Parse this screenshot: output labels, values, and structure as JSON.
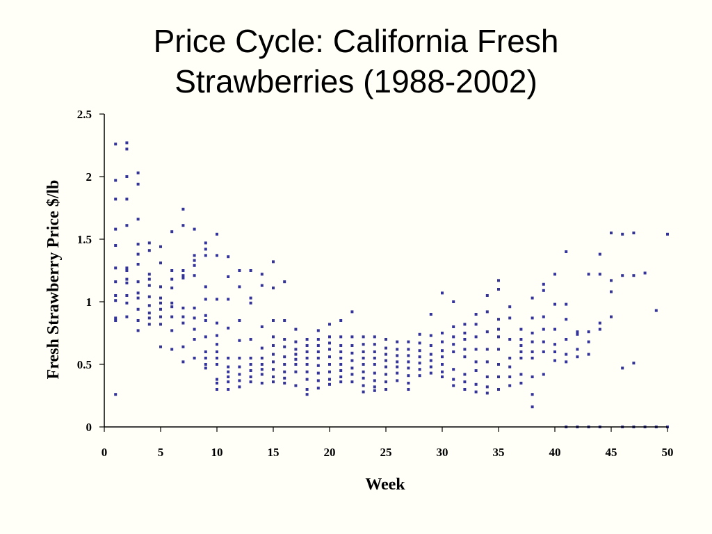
{
  "title_line1": "Price Cycle: California Fresh",
  "title_line2": "Strawberries (1988-2002)",
  "colors": {
    "background": "#fffff7",
    "points": "#33339a",
    "axis": "#000000"
  },
  "chart_data": {
    "type": "scatter",
    "xlabel": "Week",
    "ylabel": "Fresh Strawberry Price $/lb",
    "xlim": [
      0,
      50
    ],
    "ylim": [
      0,
      2.5
    ],
    "xticks": [
      "0",
      "5",
      "10",
      "15",
      "20",
      "25",
      "30",
      "35",
      "40",
      "45",
      "50"
    ],
    "yticks": [
      "0",
      "0.5",
      "1",
      "1.5",
      "2",
      "2.5"
    ],
    "grid": false,
    "legend": "none",
    "marker": "square",
    "points": [
      [
        1,
        2.26
      ],
      [
        1,
        1.97
      ],
      [
        1,
        1.82
      ],
      [
        1,
        1.58
      ],
      [
        1,
        1.45
      ],
      [
        1,
        1.27
      ],
      [
        1,
        1.16
      ],
      [
        1,
        1.05
      ],
      [
        1,
        1.01
      ],
      [
        1,
        0.87
      ],
      [
        1,
        0.85
      ],
      [
        1,
        0.26
      ],
      [
        2,
        2.27
      ],
      [
        2,
        2.22
      ],
      [
        2,
        2.0
      ],
      [
        2,
        1.82
      ],
      [
        2,
        1.61
      ],
      [
        2,
        1.27
      ],
      [
        2,
        1.25
      ],
      [
        2,
        1.18
      ],
      [
        2,
        1.15
      ],
      [
        2,
        1.05
      ],
      [
        2,
        0.99
      ],
      [
        2,
        0.88
      ],
      [
        3,
        2.03
      ],
      [
        3,
        1.94
      ],
      [
        3,
        1.66
      ],
      [
        3,
        1.46
      ],
      [
        3,
        1.38
      ],
      [
        3,
        1.3
      ],
      [
        3,
        1.16
      ],
      [
        3,
        1.07
      ],
      [
        3,
        1.03
      ],
      [
        3,
        0.94
      ],
      [
        3,
        0.85
      ],
      [
        3,
        0.77
      ],
      [
        4,
        1.47
      ],
      [
        4,
        1.41
      ],
      [
        4,
        1.22
      ],
      [
        4,
        1.18
      ],
      [
        4,
        1.13
      ],
      [
        4,
        1.04
      ],
      [
        4,
        0.97
      ],
      [
        4,
        0.91
      ],
      [
        4,
        0.87
      ],
      [
        4,
        0.82
      ],
      [
        5,
        1.44
      ],
      [
        5,
        1.31
      ],
      [
        5,
        1.12
      ],
      [
        5,
        1.03
      ],
      [
        5,
        0.99
      ],
      [
        5,
        0.94
      ],
      [
        5,
        0.88
      ],
      [
        5,
        0.82
      ],
      [
        5,
        0.64
      ],
      [
        6,
        1.56
      ],
      [
        6,
        1.25
      ],
      [
        6,
        1.18
      ],
      [
        6,
        1.11
      ],
      [
        6,
        0.99
      ],
      [
        6,
        0.96
      ],
      [
        6,
        0.88
      ],
      [
        6,
        0.77
      ],
      [
        6,
        0.62
      ],
      [
        7,
        1.74
      ],
      [
        7,
        1.61
      ],
      [
        7,
        1.25
      ],
      [
        7,
        1.21
      ],
      [
        7,
        1.19
      ],
      [
        7,
        0.95
      ],
      [
        7,
        0.88
      ],
      [
        7,
        0.83
      ],
      [
        7,
        0.64
      ],
      [
        7,
        0.52
      ],
      [
        8,
        1.58
      ],
      [
        8,
        1.37
      ],
      [
        8,
        1.33
      ],
      [
        8,
        1.29
      ],
      [
        8,
        1.21
      ],
      [
        8,
        0.95
      ],
      [
        8,
        0.87
      ],
      [
        8,
        0.78
      ],
      [
        8,
        0.7
      ],
      [
        8,
        0.55
      ],
      [
        9,
        1.47
      ],
      [
        9,
        1.42
      ],
      [
        9,
        1.37
      ],
      [
        9,
        1.12
      ],
      [
        9,
        1.02
      ],
      [
        9,
        0.89
      ],
      [
        9,
        0.85
      ],
      [
        9,
        0.72
      ],
      [
        9,
        0.6
      ],
      [
        9,
        0.55
      ],
      [
        9,
        0.5
      ],
      [
        9,
        0.47
      ],
      [
        10,
        1.54
      ],
      [
        10,
        1.37
      ],
      [
        10,
        1.02
      ],
      [
        10,
        0.83
      ],
      [
        10,
        0.73
      ],
      [
        10,
        0.66
      ],
      [
        10,
        0.6
      ],
      [
        10,
        0.55
      ],
      [
        10,
        0.5
      ],
      [
        10,
        0.38
      ],
      [
        10,
        0.35
      ],
      [
        10,
        0.3
      ],
      [
        11,
        1.36
      ],
      [
        11,
        1.2
      ],
      [
        11,
        1.02
      ],
      [
        11,
        0.79
      ],
      [
        11,
        0.55
      ],
      [
        11,
        0.48
      ],
      [
        11,
        0.44
      ],
      [
        11,
        0.4
      ],
      [
        11,
        0.36
      ],
      [
        11,
        0.3
      ],
      [
        12,
        1.25
      ],
      [
        12,
        1.12
      ],
      [
        12,
        0.85
      ],
      [
        12,
        0.69
      ],
      [
        12,
        0.55
      ],
      [
        12,
        0.48
      ],
      [
        12,
        0.42
      ],
      [
        12,
        0.37
      ],
      [
        12,
        0.32
      ],
      [
        13,
        1.25
      ],
      [
        13,
        1.03
      ],
      [
        13,
        0.99
      ],
      [
        13,
        0.7
      ],
      [
        13,
        0.55
      ],
      [
        13,
        0.5
      ],
      [
        13,
        0.45
      ],
      [
        13,
        0.4
      ],
      [
        13,
        0.36
      ],
      [
        14,
        1.22
      ],
      [
        14,
        1.13
      ],
      [
        14,
        0.8
      ],
      [
        14,
        0.63
      ],
      [
        14,
        0.55
      ],
      [
        14,
        0.5
      ],
      [
        14,
        0.46
      ],
      [
        14,
        0.42
      ],
      [
        14,
        0.35
      ],
      [
        15,
        1.32
      ],
      [
        15,
        1.11
      ],
      [
        15,
        0.85
      ],
      [
        15,
        0.72
      ],
      [
        15,
        0.65
      ],
      [
        15,
        0.58
      ],
      [
        15,
        0.52
      ],
      [
        15,
        0.46
      ],
      [
        15,
        0.4
      ],
      [
        15,
        0.36
      ],
      [
        16,
        1.16
      ],
      [
        16,
        0.85
      ],
      [
        16,
        0.7
      ],
      [
        16,
        0.64
      ],
      [
        16,
        0.56
      ],
      [
        16,
        0.5
      ],
      [
        16,
        0.44
      ],
      [
        16,
        0.39
      ],
      [
        16,
        0.35
      ],
      [
        17,
        0.78
      ],
      [
        17,
        0.68
      ],
      [
        17,
        0.62
      ],
      [
        17,
        0.58
      ],
      [
        17,
        0.54
      ],
      [
        17,
        0.5
      ],
      [
        17,
        0.44
      ],
      [
        17,
        0.33
      ],
      [
        18,
        0.7
      ],
      [
        18,
        0.65
      ],
      [
        18,
        0.6
      ],
      [
        18,
        0.55
      ],
      [
        18,
        0.5
      ],
      [
        18,
        0.44
      ],
      [
        18,
        0.38
      ],
      [
        18,
        0.3
      ],
      [
        18,
        0.26
      ],
      [
        19,
        0.77
      ],
      [
        19,
        0.7
      ],
      [
        19,
        0.65
      ],
      [
        19,
        0.6
      ],
      [
        19,
        0.55
      ],
      [
        19,
        0.49
      ],
      [
        19,
        0.43
      ],
      [
        19,
        0.37
      ],
      [
        19,
        0.31
      ],
      [
        20,
        0.82
      ],
      [
        20,
        0.72
      ],
      [
        20,
        0.67
      ],
      [
        20,
        0.62
      ],
      [
        20,
        0.56
      ],
      [
        20,
        0.5
      ],
      [
        20,
        0.44
      ],
      [
        20,
        0.38
      ],
      [
        20,
        0.34
      ],
      [
        21,
        0.85
      ],
      [
        21,
        0.72
      ],
      [
        21,
        0.65
      ],
      [
        21,
        0.6
      ],
      [
        21,
        0.55
      ],
      [
        21,
        0.5
      ],
      [
        21,
        0.45
      ],
      [
        21,
        0.4
      ],
      [
        21,
        0.36
      ],
      [
        22,
        0.92
      ],
      [
        22,
        0.72
      ],
      [
        22,
        0.65
      ],
      [
        22,
        0.59
      ],
      [
        22,
        0.53
      ],
      [
        22,
        0.47
      ],
      [
        22,
        0.42
      ],
      [
        22,
        0.36
      ],
      [
        23,
        0.72
      ],
      [
        23,
        0.66
      ],
      [
        23,
        0.6
      ],
      [
        23,
        0.55
      ],
      [
        23,
        0.5
      ],
      [
        23,
        0.44
      ],
      [
        23,
        0.39
      ],
      [
        23,
        0.33
      ],
      [
        23,
        0.28
      ],
      [
        24,
        0.72
      ],
      [
        24,
        0.66
      ],
      [
        24,
        0.6
      ],
      [
        24,
        0.55
      ],
      [
        24,
        0.5
      ],
      [
        24,
        0.43
      ],
      [
        24,
        0.37
      ],
      [
        24,
        0.32
      ],
      [
        24,
        0.29
      ],
      [
        25,
        0.7
      ],
      [
        25,
        0.63
      ],
      [
        25,
        0.58
      ],
      [
        25,
        0.53
      ],
      [
        25,
        0.48
      ],
      [
        25,
        0.42
      ],
      [
        25,
        0.36
      ],
      [
        25,
        0.3
      ],
      [
        26,
        0.68
      ],
      [
        26,
        0.62
      ],
      [
        26,
        0.57
      ],
      [
        26,
        0.52
      ],
      [
        26,
        0.48
      ],
      [
        26,
        0.43
      ],
      [
        26,
        0.37
      ],
      [
        27,
        0.68
      ],
      [
        27,
        0.62
      ],
      [
        27,
        0.57
      ],
      [
        27,
        0.52
      ],
      [
        27,
        0.47
      ],
      [
        27,
        0.41
      ],
      [
        27,
        0.35
      ],
      [
        27,
        0.3
      ],
      [
        28,
        0.74
      ],
      [
        28,
        0.67
      ],
      [
        28,
        0.61
      ],
      [
        28,
        0.56
      ],
      [
        28,
        0.51
      ],
      [
        28,
        0.46
      ],
      [
        28,
        0.41
      ],
      [
        29,
        0.9
      ],
      [
        29,
        0.73
      ],
      [
        29,
        0.65
      ],
      [
        29,
        0.58
      ],
      [
        29,
        0.53
      ],
      [
        29,
        0.48
      ],
      [
        29,
        0.43
      ],
      [
        30,
        1.07
      ],
      [
        30,
        0.75
      ],
      [
        30,
        0.68
      ],
      [
        30,
        0.61
      ],
      [
        30,
        0.56
      ],
      [
        30,
        0.5
      ],
      [
        30,
        0.44
      ],
      [
        30,
        0.4
      ],
      [
        31,
        1.0
      ],
      [
        31,
        0.8
      ],
      [
        31,
        0.72
      ],
      [
        31,
        0.66
      ],
      [
        31,
        0.6
      ],
      [
        31,
        0.46
      ],
      [
        31,
        0.38
      ],
      [
        31,
        0.33
      ],
      [
        32,
        0.82
      ],
      [
        32,
        0.75
      ],
      [
        32,
        0.7
      ],
      [
        32,
        0.62
      ],
      [
        32,
        0.56
      ],
      [
        32,
        0.42
      ],
      [
        32,
        0.36
      ],
      [
        32,
        0.3
      ],
      [
        33,
        0.9
      ],
      [
        33,
        0.82
      ],
      [
        33,
        0.72
      ],
      [
        33,
        0.62
      ],
      [
        33,
        0.52
      ],
      [
        33,
        0.45
      ],
      [
        33,
        0.34
      ],
      [
        33,
        0.28
      ],
      [
        34,
        1.05
      ],
      [
        34,
        0.92
      ],
      [
        34,
        0.76
      ],
      [
        34,
        0.62
      ],
      [
        34,
        0.52
      ],
      [
        34,
        0.4
      ],
      [
        34,
        0.32
      ],
      [
        34,
        0.27
      ],
      [
        35,
        1.17
      ],
      [
        35,
        1.1
      ],
      [
        35,
        0.86
      ],
      [
        35,
        0.78
      ],
      [
        35,
        0.72
      ],
      [
        35,
        0.62
      ],
      [
        35,
        0.5
      ],
      [
        35,
        0.4
      ],
      [
        35,
        0.3
      ],
      [
        36,
        0.96
      ],
      [
        36,
        0.87
      ],
      [
        36,
        0.7
      ],
      [
        36,
        0.55
      ],
      [
        36,
        0.48
      ],
      [
        36,
        0.4
      ],
      [
        36,
        0.33
      ],
      [
        37,
        0.78
      ],
      [
        37,
        0.7
      ],
      [
        37,
        0.65
      ],
      [
        37,
        0.6
      ],
      [
        37,
        0.55
      ],
      [
        37,
        0.42
      ],
      [
        37,
        0.35
      ],
      [
        38,
        1.03
      ],
      [
        38,
        0.87
      ],
      [
        38,
        0.75
      ],
      [
        38,
        0.68
      ],
      [
        38,
        0.6
      ],
      [
        38,
        0.55
      ],
      [
        38,
        0.4
      ],
      [
        38,
        0.26
      ],
      [
        38,
        0.16
      ],
      [
        39,
        1.14
      ],
      [
        39,
        1.09
      ],
      [
        39,
        0.88
      ],
      [
        39,
        0.78
      ],
      [
        39,
        0.68
      ],
      [
        39,
        0.6
      ],
      [
        39,
        0.42
      ],
      [
        40,
        1.22
      ],
      [
        40,
        0.98
      ],
      [
        40,
        0.78
      ],
      [
        40,
        0.66
      ],
      [
        40,
        0.6
      ],
      [
        40,
        0.53
      ],
      [
        41,
        1.4
      ],
      [
        41,
        0.98
      ],
      [
        41,
        0.86
      ],
      [
        41,
        0.7
      ],
      [
        41,
        0.58
      ],
      [
        41,
        0.52
      ],
      [
        41,
        0.0
      ],
      [
        42,
        0.76
      ],
      [
        42,
        0.74
      ],
      [
        42,
        0.62
      ],
      [
        42,
        0.56
      ],
      [
        42,
        0.0
      ],
      [
        43,
        1.22
      ],
      [
        43,
        0.76
      ],
      [
        43,
        0.68
      ],
      [
        43,
        0.58
      ],
      [
        43,
        0.0
      ],
      [
        44,
        1.38
      ],
      [
        44,
        1.22
      ],
      [
        44,
        0.83
      ],
      [
        44,
        0.78
      ],
      [
        44,
        0.0
      ],
      [
        45,
        1.55
      ],
      [
        45,
        1.17
      ],
      [
        45,
        1.08
      ],
      [
        45,
        0.88
      ],
      [
        46,
        1.54
      ],
      [
        46,
        1.21
      ],
      [
        46,
        0.47
      ],
      [
        46,
        0.0
      ],
      [
        47,
        1.55
      ],
      [
        47,
        1.21
      ],
      [
        47,
        0.51
      ],
      [
        47,
        0.0
      ],
      [
        48,
        1.23
      ],
      [
        48,
        0.0
      ],
      [
        49,
        0.93
      ],
      [
        49,
        0.0
      ],
      [
        50,
        1.54
      ],
      [
        50,
        0.0
      ]
    ]
  }
}
